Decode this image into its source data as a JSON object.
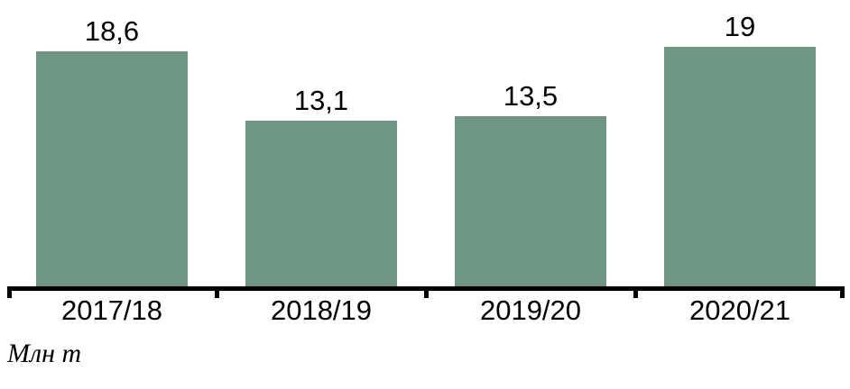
{
  "chart_data": {
    "type": "bar",
    "categories": [
      "2017/18",
      "2018/19",
      "2019/20",
      "2020/21"
    ],
    "values": [
      18.6,
      13.1,
      13.5,
      19
    ],
    "value_labels": [
      "18,6",
      "13,1",
      "13,5",
      "19"
    ],
    "title": "",
    "xlabel": "",
    "ylabel": "Млн т",
    "ylim": [
      0,
      22.7
    ],
    "grid": false,
    "legend": false,
    "bar_color": "#6F9585",
    "axis_color": "#000000",
    "text_color": "#000000",
    "decimal_separator": ","
  }
}
